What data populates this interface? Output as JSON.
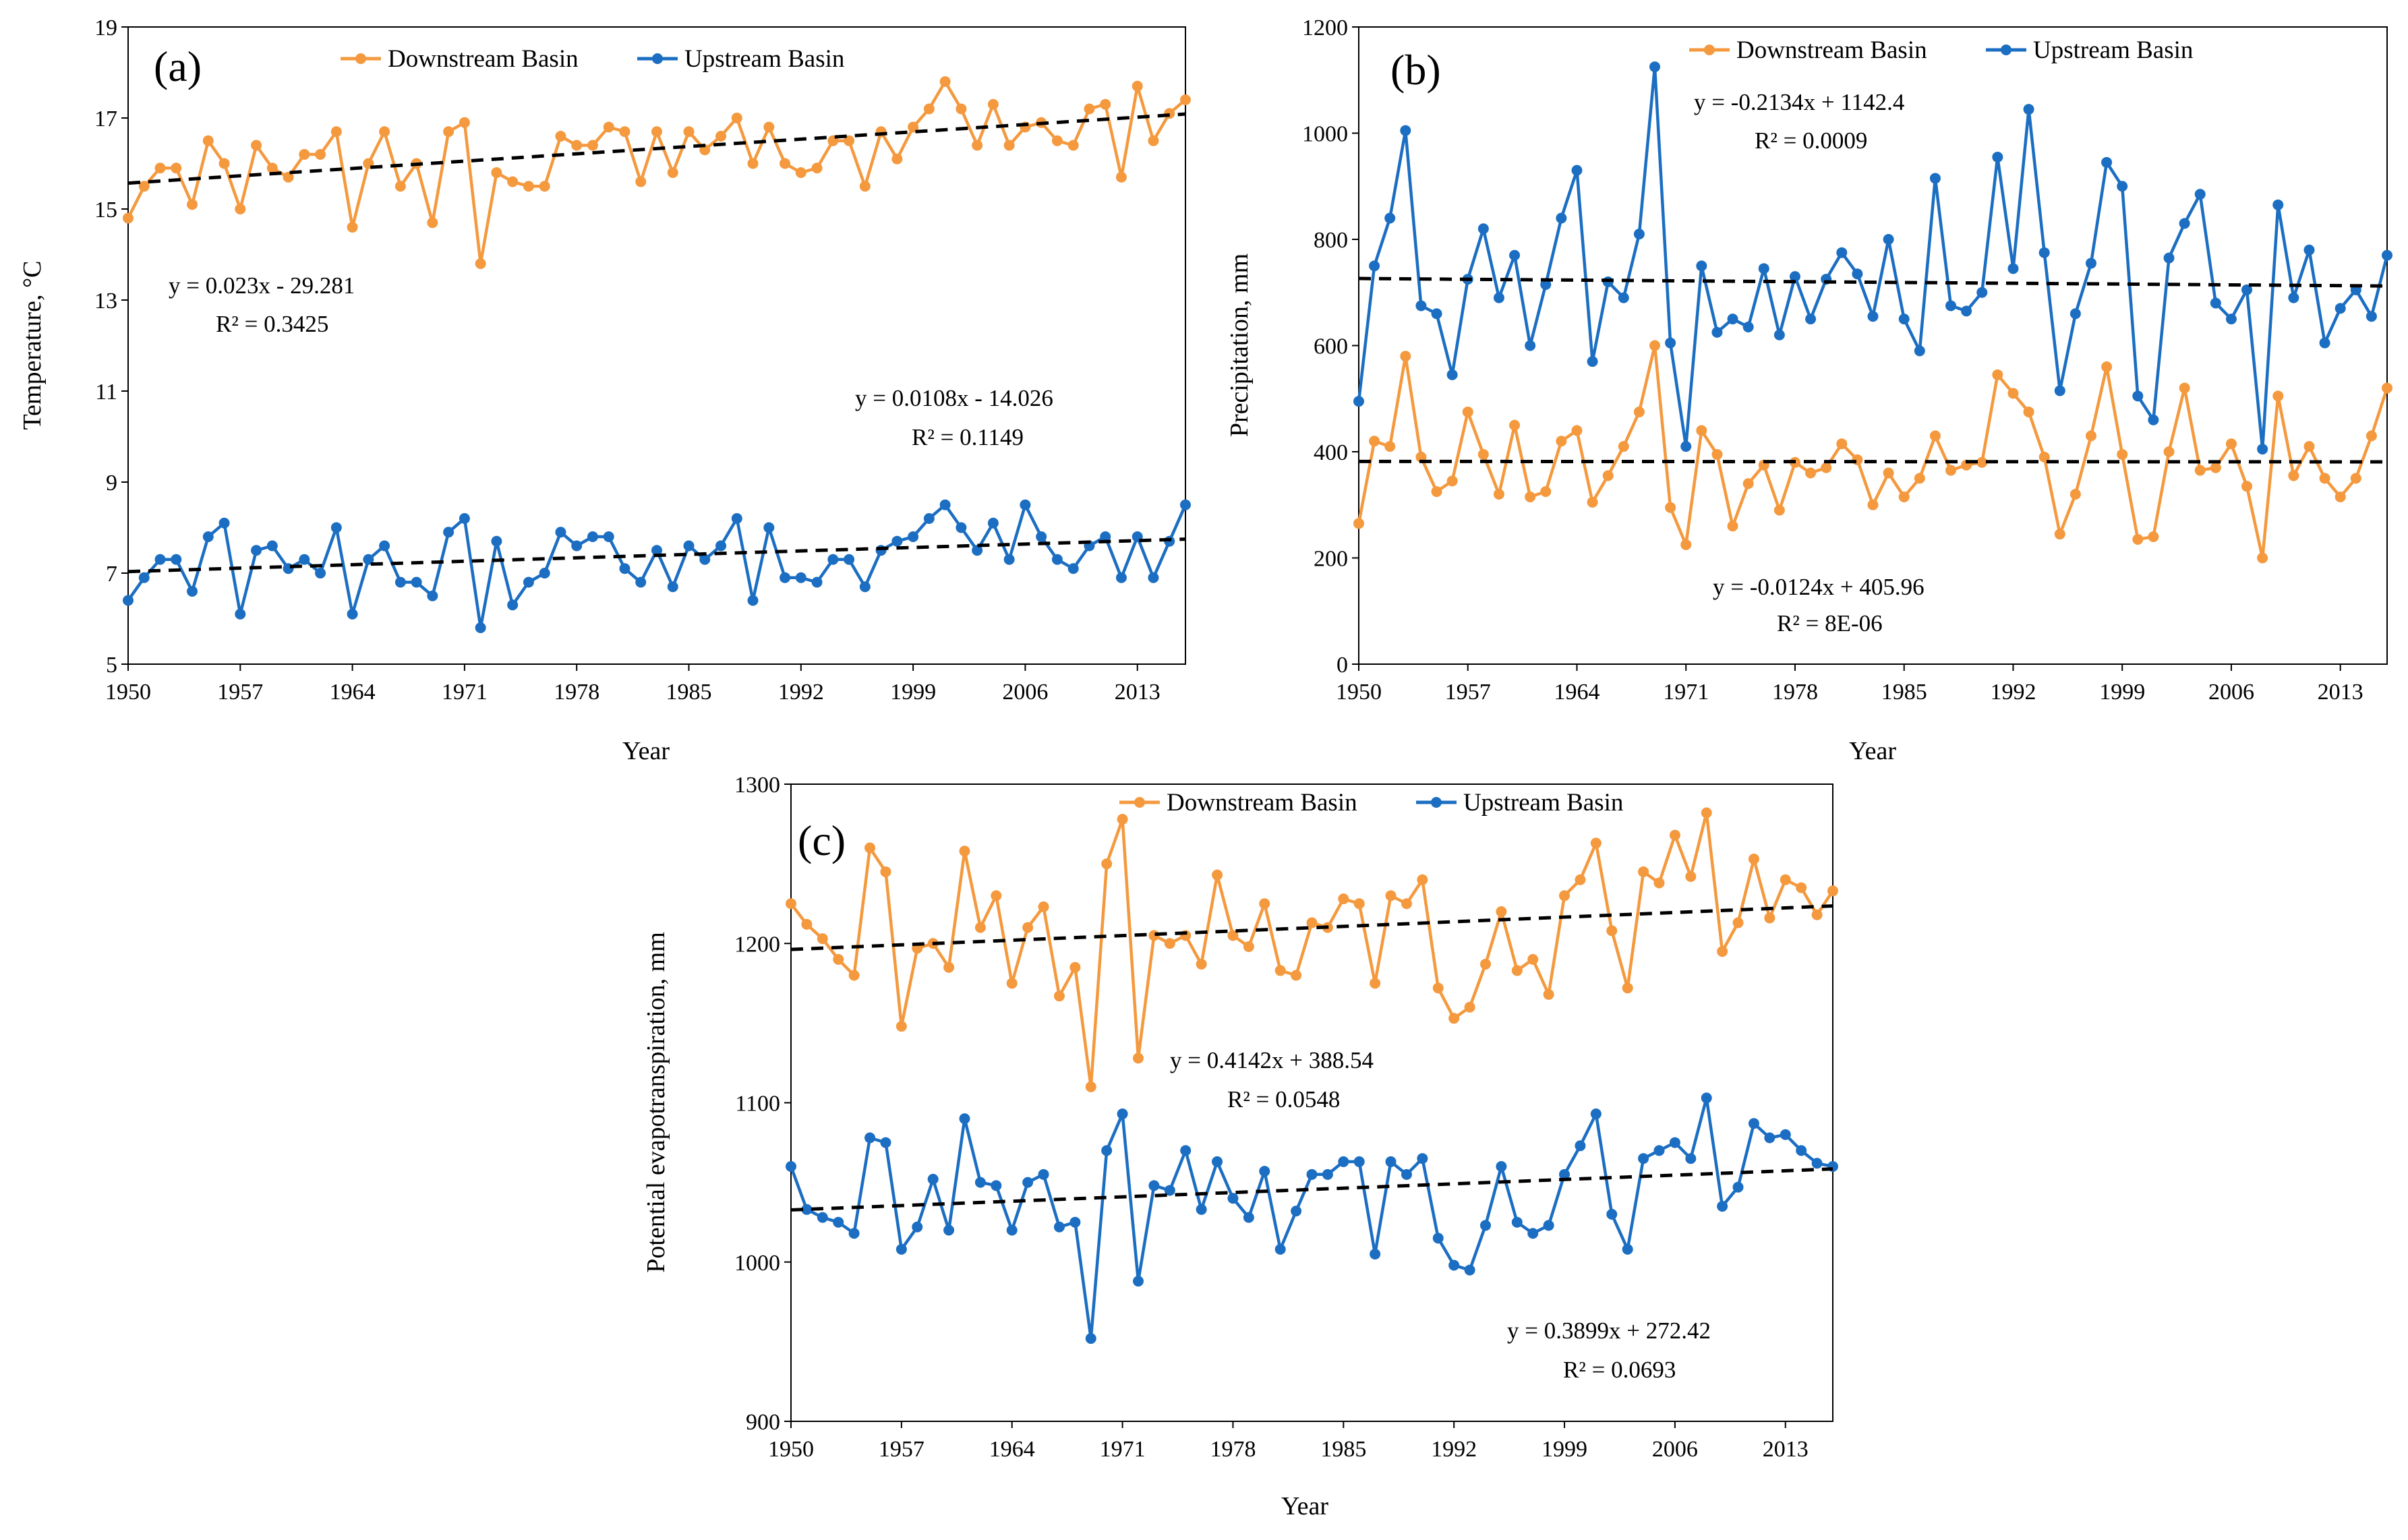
{
  "colors": {
    "downstream": "#F4993E",
    "upstream": "#1B6EC2",
    "trend": "#000000"
  },
  "chart_data": [
    {
      "type": "line",
      "panel_label": "(a)",
      "ylabel": "Temperature, °C",
      "xlabel": "Year",
      "ylim": [
        5,
        19
      ],
      "yticks": [
        "5",
        "7",
        "9",
        "11",
        "13",
        "15",
        "17",
        "19"
      ],
      "xticks": [
        "1950",
        "1957",
        "1964",
        "1971",
        "1978",
        "1985",
        "1992",
        "1999",
        "2006",
        "2013"
      ],
      "legend": [
        "Downstream Basin",
        "Upstream Basin"
      ],
      "x_start": 1950,
      "series": [
        {
          "name": "Downstream Basin",
          "values": [
            14.8,
            15.5,
            15.9,
            15.9,
            15.1,
            16.5,
            16.0,
            15.0,
            16.4,
            15.9,
            15.7,
            16.2,
            16.2,
            16.7,
            14.6,
            16.0,
            16.7,
            15.5,
            16.0,
            14.7,
            16.7,
            16.9,
            13.8,
            15.8,
            15.6,
            15.5,
            15.5,
            16.6,
            16.4,
            16.4,
            16.8,
            16.7,
            15.6,
            16.7,
            15.8,
            16.7,
            16.3,
            16.6,
            17.0,
            16.0,
            16.8,
            16.0,
            15.8,
            15.9,
            16.5,
            16.5,
            15.5,
            16.7,
            16.1,
            16.8,
            17.2,
            17.8,
            17.2,
            16.4,
            17.3,
            16.4,
            16.8,
            16.9,
            16.5,
            16.4,
            17.2,
            17.3,
            15.7,
            17.7,
            16.5,
            17.1,
            17.4
          ]
        },
        {
          "name": "Upstream Basin",
          "values": [
            6.4,
            6.9,
            7.3,
            7.3,
            6.6,
            7.8,
            8.1,
            6.1,
            7.5,
            7.6,
            7.1,
            7.3,
            7.0,
            8.0,
            6.1,
            7.3,
            7.6,
            6.8,
            6.8,
            6.5,
            7.9,
            8.2,
            5.8,
            7.7,
            6.3,
            6.8,
            7.0,
            7.9,
            7.6,
            7.8,
            7.8,
            7.1,
            6.8,
            7.5,
            6.7,
            7.6,
            7.3,
            7.6,
            8.2,
            6.4,
            8.0,
            6.9,
            6.9,
            6.8,
            7.3,
            7.3,
            6.7,
            7.5,
            7.7,
            7.8,
            8.2,
            8.5,
            8.0,
            7.5,
            8.1,
            7.3,
            8.5,
            7.8,
            7.3,
            7.1,
            7.6,
            7.8,
            6.9,
            7.8,
            6.9,
            7.7,
            8.5
          ]
        }
      ],
      "trendlines": [
        {
          "series": "Downstream Basin",
          "slope": 0.023,
          "intercept": -29.281,
          "equation": "y = 0.023x - 29.281",
          "r2": "R² = 0.3425"
        },
        {
          "series": "Upstream Basin",
          "slope": 0.0108,
          "intercept": -14.026,
          "equation": "y = 0.0108x - 14.026",
          "r2": "R² = 0.1149"
        }
      ]
    },
    {
      "type": "line",
      "panel_label": "(b)",
      "ylabel": "Precipitation, mm",
      "xlabel": "Year",
      "ylim": [
        0,
        1200
      ],
      "yticks": [
        "0",
        "200",
        "400",
        "600",
        "800",
        "1000",
        "1200"
      ],
      "xticks": [
        "1950",
        "1957",
        "1964",
        "1971",
        "1978",
        "1985",
        "1992",
        "1999",
        "2006",
        "2013"
      ],
      "legend": [
        "Downstream Basin",
        "Upstream Basin"
      ],
      "x_start": 1950,
      "series": [
        {
          "name": "Downstream Basin",
          "values": [
            265,
            420,
            410,
            580,
            390,
            325,
            345,
            475,
            395,
            320,
            450,
            315,
            325,
            420,
            440,
            305,
            355,
            410,
            475,
            600,
            295,
            225,
            440,
            395,
            260,
            340,
            375,
            290,
            380,
            360,
            370,
            415,
            385,
            300,
            360,
            315,
            350,
            430,
            365,
            375,
            380,
            545,
            510,
            475,
            390,
            245,
            320,
            430,
            560,
            395,
            235,
            240,
            400,
            520,
            365,
            370,
            415,
            335,
            200,
            505,
            355,
            410,
            350,
            315,
            350,
            430,
            520
          ]
        },
        {
          "name": "Upstream Basin",
          "values": [
            495,
            750,
            840,
            1005,
            675,
            660,
            545,
            725,
            820,
            690,
            770,
            600,
            715,
            840,
            930,
            570,
            720,
            690,
            810,
            1125,
            605,
            410,
            750,
            625,
            650,
            635,
            745,
            620,
            730,
            650,
            725,
            775,
            735,
            655,
            800,
            650,
            590,
            915,
            675,
            665,
            700,
            955,
            745,
            1045,
            775,
            515,
            660,
            755,
            945,
            900,
            505,
            460,
            765,
            830,
            885,
            680,
            650,
            705,
            405,
            865,
            690,
            780,
            605,
            670,
            705,
            655,
            770
          ]
        }
      ],
      "trendlines": [
        {
          "series": "Upstream Basin",
          "slope": -0.2134,
          "intercept": 1142.4,
          "equation": "y = -0.2134x + 1142.4",
          "r2": "R² = 0.0009"
        },
        {
          "series": "Downstream Basin",
          "slope": -0.0124,
          "intercept": 405.96,
          "equation": "y = -0.0124x + 405.96",
          "r2": "R² = 8E-06"
        }
      ]
    },
    {
      "type": "line",
      "panel_label": "(c)",
      "ylabel": "Potential evapotranspiration, mm",
      "xlabel": "Year",
      "ylim": [
        900,
        1300
      ],
      "yticks": [
        "900",
        "1000",
        "1100",
        "1200",
        "1300"
      ],
      "xticks": [
        "1950",
        "1957",
        "1964",
        "1971",
        "1978",
        "1985",
        "1992",
        "1999",
        "2006",
        "2013"
      ],
      "legend": [
        "Downstream Basin",
        "Upstream Basin"
      ],
      "x_start": 1950,
      "series": [
        {
          "name": "Downstream Basin",
          "values": [
            1225,
            1212,
            1203,
            1190,
            1180,
            1260,
            1245,
            1148,
            1197,
            1200,
            1185,
            1258,
            1210,
            1230,
            1175,
            1210,
            1223,
            1167,
            1185,
            1110,
            1250,
            1278,
            1128,
            1205,
            1200,
            1205,
            1187,
            1243,
            1205,
            1198,
            1225,
            1183,
            1180,
            1213,
            1210,
            1228,
            1225,
            1175,
            1230,
            1225,
            1240,
            1172,
            1153,
            1160,
            1187,
            1220,
            1183,
            1190,
            1168,
            1230,
            1240,
            1263,
            1208,
            1172,
            1245,
            1238,
            1268,
            1242,
            1282,
            1195,
            1213,
            1253,
            1216,
            1240,
            1235,
            1218,
            1233
          ]
        },
        {
          "name": "Upstream Basin",
          "values": [
            1060,
            1033,
            1028,
            1025,
            1018,
            1078,
            1075,
            1008,
            1022,
            1052,
            1020,
            1090,
            1050,
            1048,
            1020,
            1050,
            1055,
            1022,
            1025,
            952,
            1070,
            1093,
            988,
            1048,
            1045,
            1070,
            1033,
            1063,
            1040,
            1028,
            1057,
            1008,
            1032,
            1055,
            1055,
            1063,
            1063,
            1005,
            1063,
            1055,
            1065,
            1015,
            998,
            995,
            1023,
            1060,
            1025,
            1018,
            1023,
            1055,
            1073,
            1093,
            1030,
            1008,
            1065,
            1070,
            1075,
            1065,
            1103,
            1035,
            1047,
            1087,
            1078,
            1080,
            1070,
            1062,
            1060
          ]
        }
      ],
      "trendlines": [
        {
          "series": "Downstream Basin",
          "slope": 0.4142,
          "intercept": 388.54,
          "equation": "y = 0.4142x + 388.54",
          "r2": "R² = 0.0548"
        },
        {
          "series": "Upstream Basin",
          "slope": 0.3899,
          "intercept": 272.42,
          "equation": "y = 0.3899x + 272.42",
          "r2": "R² = 0.0693"
        }
      ]
    }
  ]
}
